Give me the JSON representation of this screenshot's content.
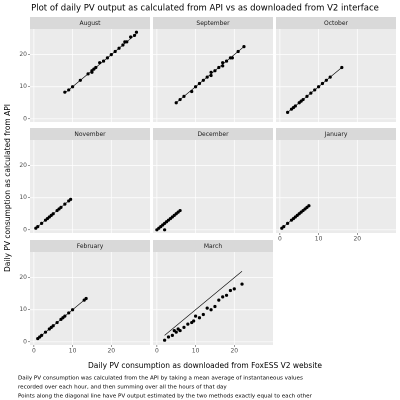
{
  "chart_data": {
    "type": "scatter",
    "title": "Plot of daily PV output as calculated from API vs as downloaded from V2 interface",
    "x_label": "Daily PV consumption as downloaded from FoxESS V2 website",
    "y_label": "Daily PV consumption as calculated from API",
    "caption": [
      "Daily PV consumption was calculated from the API by taking a mean average of instantaneous values",
      "recorded over each hour, and then summing over all the hours of that day",
      "Points along the diagonal line have PV output estimated by the two methods exactly equal to each other"
    ],
    "xlim": [
      -1,
      30
    ],
    "ylim": [
      -1,
      28
    ],
    "xticks": [
      0,
      10,
      20
    ],
    "yticks": [
      0,
      10,
      20
    ],
    "grid": true,
    "color": "#000000",
    "panels": [
      {
        "name": "August",
        "x": [
          8,
          9,
          10,
          12,
          14,
          15,
          15.5,
          16,
          15,
          17,
          18,
          19,
          20,
          21,
          22,
          23,
          23.5,
          24,
          25,
          26,
          26.5
        ],
        "y": [
          8.3,
          9,
          10,
          12,
          14,
          15,
          15.5,
          16,
          14.5,
          17.5,
          18,
          19,
          20,
          21,
          22,
          23,
          24,
          24,
          25.5,
          26,
          27
        ]
      },
      {
        "name": "September",
        "x": [
          5,
          6,
          7,
          9,
          10,
          11,
          12,
          13,
          14,
          14,
          15,
          16,
          17,
          17,
          18,
          19,
          19.5,
          21,
          22.5
        ],
        "y": [
          5,
          6,
          7,
          8.5,
          10,
          11,
          12,
          13,
          13.5,
          14.5,
          15,
          16,
          16.5,
          17.5,
          18,
          19,
          19,
          21,
          22.5
        ]
      },
      {
        "name": "October",
        "x": [
          2,
          3,
          3.5,
          4,
          5,
          5.5,
          6,
          7,
          8,
          9,
          10,
          11,
          12,
          13,
          16
        ],
        "y": [
          2,
          3,
          3.5,
          4,
          5,
          5.5,
          6,
          7,
          8,
          9,
          10,
          11,
          12,
          13,
          16
        ]
      },
      {
        "name": "November",
        "x": [
          0.5,
          1,
          2,
          3,
          3.5,
          4,
          4.5,
          5,
          6,
          6.5,
          7,
          8,
          9,
          9.5
        ],
        "y": [
          0.5,
          1,
          2,
          3,
          3.5,
          4,
          4.5,
          5,
          6,
          6.5,
          7,
          8,
          9,
          9.5
        ]
      },
      {
        "name": "December",
        "x": [
          0,
          0.5,
          1,
          1.5,
          2,
          2.5,
          3,
          2,
          3.5,
          4,
          4.5,
          5,
          5.5,
          6
        ],
        "y": [
          0,
          0.5,
          1,
          1.5,
          2,
          2.5,
          3,
          0,
          3.5,
          4,
          4.5,
          5,
          5.5,
          6
        ]
      },
      {
        "name": "January",
        "x": [
          0.5,
          1,
          2,
          3,
          3.5,
          4,
          4.5,
          5,
          5.5,
          6,
          6.5,
          7,
          7.5
        ],
        "y": [
          0.5,
          1,
          2,
          3,
          3.5,
          4,
          4.5,
          5,
          5.5,
          6,
          6.5,
          7,
          7.5
        ]
      },
      {
        "name": "February",
        "x": [
          1,
          1.5,
          2,
          3,
          4,
          4.5,
          5,
          6,
          7,
          7.5,
          8,
          9,
          10,
          13,
          13.5
        ],
        "y": [
          1,
          1.5,
          2,
          3,
          4,
          4.5,
          5,
          6,
          7,
          7.5,
          8,
          9,
          10,
          13,
          13.5
        ]
      },
      {
        "name": "March",
        "x": [
          2,
          3,
          4,
          4.5,
          5,
          5.5,
          6,
          7,
          8,
          9,
          9.5,
          10,
          11,
          12,
          13,
          14,
          15,
          16,
          17,
          18,
          19,
          20,
          22
        ],
        "y": [
          0.5,
          1.5,
          2,
          3.5,
          3,
          4,
          3.5,
          4.5,
          5.5,
          6,
          6.5,
          8,
          7.5,
          8.5,
          10.5,
          10,
          11,
          13,
          14,
          14.5,
          16,
          16.5,
          18
        ]
      }
    ]
  }
}
